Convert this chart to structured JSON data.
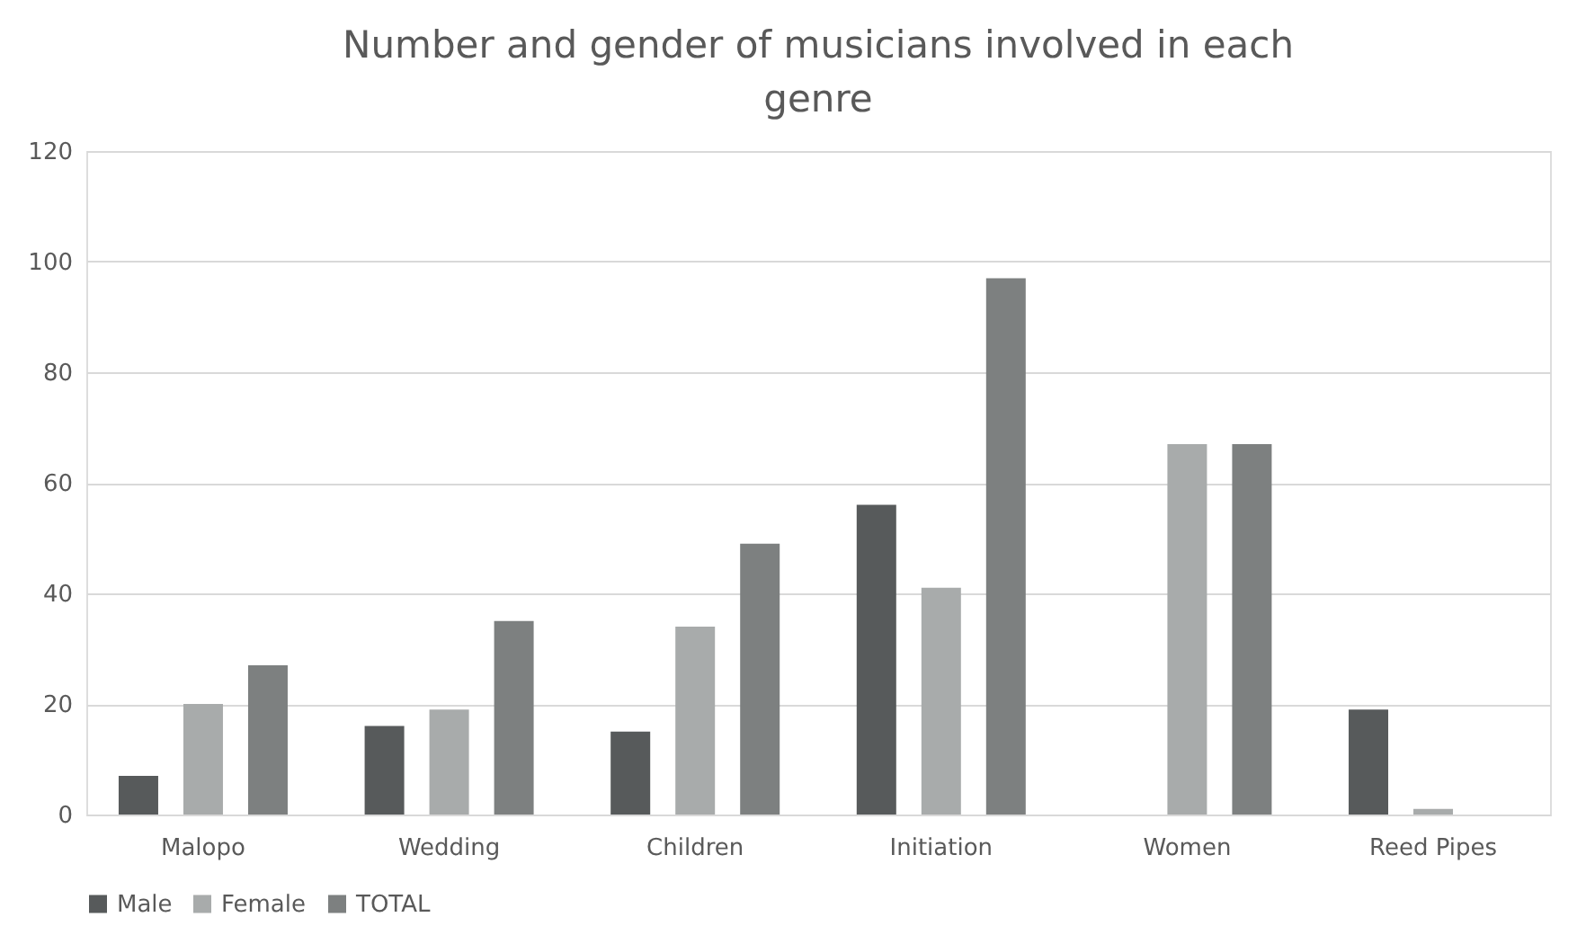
{
  "chart_data": {
    "type": "bar",
    "title": "Number and gender of musicians involved in each genre",
    "categories": [
      "Malopo",
      "Wedding",
      "Children",
      "Initiation",
      "Women",
      "Reed Pipes"
    ],
    "series": [
      {
        "name": "Male",
        "color": "#575a5b",
        "values": [
          7,
          16,
          15,
          56,
          null,
          19
        ]
      },
      {
        "name": "Female",
        "color": "#a8abab",
        "values": [
          20,
          19,
          34,
          41,
          67,
          1
        ]
      },
      {
        "name": "TOTAL",
        "color": "#7d8080",
        "values": [
          27,
          35,
          49,
          97,
          67,
          null
        ]
      }
    ],
    "ylim": [
      0,
      120
    ],
    "yticks": [
      0,
      20,
      40,
      60,
      80,
      100,
      120
    ],
    "grid": "y",
    "legend": "bottom"
  }
}
